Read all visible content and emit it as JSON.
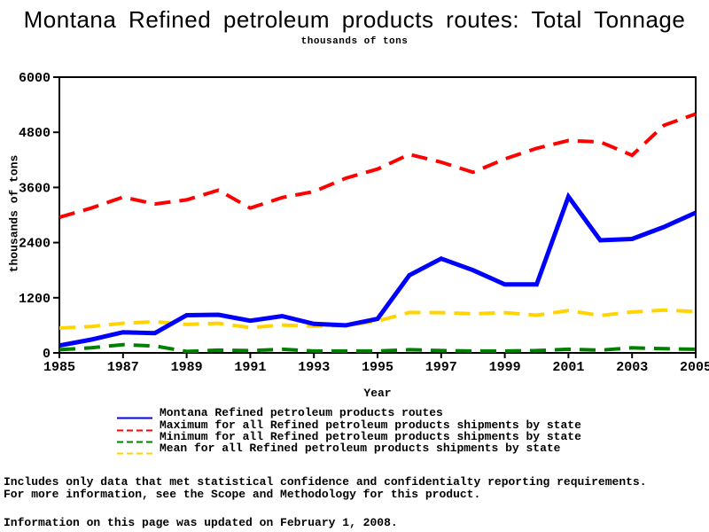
{
  "title": "Montana Refined petroleum products routes: Total Tonnage",
  "subtitle": "thousands of tons",
  "chart_data": {
    "type": "line",
    "title": "Montana Refined petroleum products routes: Total Tonnage",
    "subtitle": "thousands of tons",
    "xlabel": "Year",
    "ylabel": "thousands of tons",
    "ylim": [
      0,
      6000
    ],
    "xlim": [
      1985,
      2005
    ],
    "yticks": [
      0,
      1200,
      2400,
      3600,
      4800,
      6000
    ],
    "xticks": [
      1985,
      1987,
      1989,
      1991,
      1993,
      1995,
      1997,
      1999,
      2001,
      2003,
      2005
    ],
    "grid": false,
    "legend_position": "bottom",
    "x": [
      1985,
      1986,
      1987,
      1988,
      1989,
      1990,
      1991,
      1992,
      1993,
      1994,
      1995,
      1996,
      1997,
      1998,
      1999,
      2000,
      2001,
      2002,
      2003,
      2004,
      2005
    ],
    "series": [
      {
        "name": "Montana Refined petroleum products routes",
        "color": "#0000ff",
        "style": "solid",
        "values": [
          160,
          290,
          450,
          430,
          820,
          830,
          700,
          800,
          630,
          600,
          740,
          1690,
          2050,
          1800,
          1490,
          1490,
          3400,
          2450,
          2480,
          2740,
          3050
        ]
      },
      {
        "name": "Maximum for all Refined petroleum products shipments by state",
        "color": "#ff0000",
        "style": "dashed",
        "values": [
          2950,
          3150,
          3390,
          3240,
          3330,
          3540,
          3150,
          3380,
          3510,
          3800,
          4000,
          4320,
          4150,
          3930,
          4220,
          4450,
          4620,
          4590,
          4300,
          4950,
          5200
        ]
      },
      {
        "name": "Minimum for all Refined petroleum products shipments by state",
        "color": "#008000",
        "style": "dashed",
        "values": [
          70,
          110,
          180,
          150,
          30,
          60,
          50,
          80,
          40,
          40,
          40,
          70,
          50,
          40,
          40,
          50,
          80,
          60,
          110,
          90,
          80
        ]
      },
      {
        "name": "Mean for all Refined petroleum products shipments by state",
        "color": "#ffd400",
        "style": "dashed",
        "values": [
          540,
          575,
          645,
          680,
          620,
          645,
          550,
          605,
          580,
          600,
          690,
          880,
          875,
          850,
          875,
          820,
          920,
          815,
          890,
          930,
          900
        ]
      }
    ]
  },
  "footer": {
    "line1": "Includes only data that met statistical confidence and confidentialty reporting requirements.",
    "line2": "For more information, see the Scope and Methodology for this product.",
    "line3": "Information on this page was updated on February 1, 2008."
  }
}
